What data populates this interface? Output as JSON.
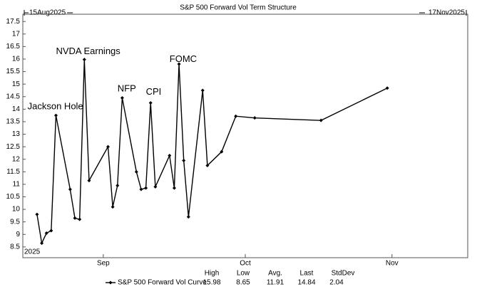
{
  "chart_data": {
    "type": "line",
    "title": "S&P 500 Forward Vol Term Structure",
    "xlim": [
      {
        "value": "2025-08-15",
        "label": "15Aug2025"
      },
      {
        "value": "2025-11-17",
        "label": "17Nov2025"
      }
    ],
    "xticks": [
      {
        "value": "2025-09-01",
        "label": "Sep"
      },
      {
        "value": "2025-10-01",
        "label": "Oct"
      },
      {
        "value": "2025-11-01",
        "label": "Nov"
      }
    ],
    "year_label": "2025",
    "ylim": [
      8.07,
      17.79
    ],
    "yticks": [
      8.5,
      9,
      9.5,
      10,
      10.5,
      11,
      11.5,
      12,
      12.5,
      13,
      13.5,
      14,
      14.5,
      15,
      15.5,
      16,
      16.5,
      17,
      17.5
    ],
    "x": [
      "2025-08-18",
      "2025-08-19",
      "2025-08-20",
      "2025-08-21",
      "2025-08-22",
      "2025-08-25",
      "2025-08-26",
      "2025-08-27",
      "2025-08-28",
      "2025-08-29",
      "2025-09-02",
      "2025-09-03",
      "2025-09-04",
      "2025-09-05",
      "2025-09-08",
      "2025-09-09",
      "2025-09-10",
      "2025-09-11",
      "2025-09-12",
      "2025-09-15",
      "2025-09-16",
      "2025-09-17",
      "2025-09-18",
      "2025-09-19",
      "2025-09-22",
      "2025-09-23",
      "2025-09-26",
      "2025-09-29",
      "2025-10-03",
      "2025-10-17",
      "2025-10-31"
    ],
    "series": [
      {
        "name": "S&P 500 Forward Vol Curve",
        "color": "#000000",
        "values": [
          9.8,
          8.65,
          9.05,
          9.15,
          13.75,
          10.8,
          9.65,
          9.6,
          15.98,
          11.15,
          12.5,
          10.1,
          10.95,
          14.45,
          11.5,
          10.8,
          10.85,
          14.25,
          10.9,
          12.15,
          10.85,
          15.8,
          11.95,
          9.7,
          14.75,
          11.75,
          12.3,
          13.72,
          13.65,
          13.55,
          14.84
        ]
      }
    ],
    "annotations": [
      {
        "text": "Jackson Hole",
        "x": "2025-08-16",
        "y": 14.1
      },
      {
        "text": "NVDA Earnings",
        "x": "2025-08-22",
        "y": 16.3
      },
      {
        "text": "NFP",
        "x": "2025-09-04",
        "y": 14.8
      },
      {
        "text": "CPI",
        "x": "2025-09-10",
        "y": 14.68
      },
      {
        "text": "FOMC",
        "x": "2025-09-15",
        "y": 15.98
      }
    ],
    "annotation_color": "#e8313a",
    "stats": {
      "headers": [
        "High",
        "Low",
        "Avg.",
        "Last",
        "StdDev"
      ],
      "values": [
        15.98,
        8.65,
        11.91,
        14.84,
        2.04
      ]
    }
  }
}
